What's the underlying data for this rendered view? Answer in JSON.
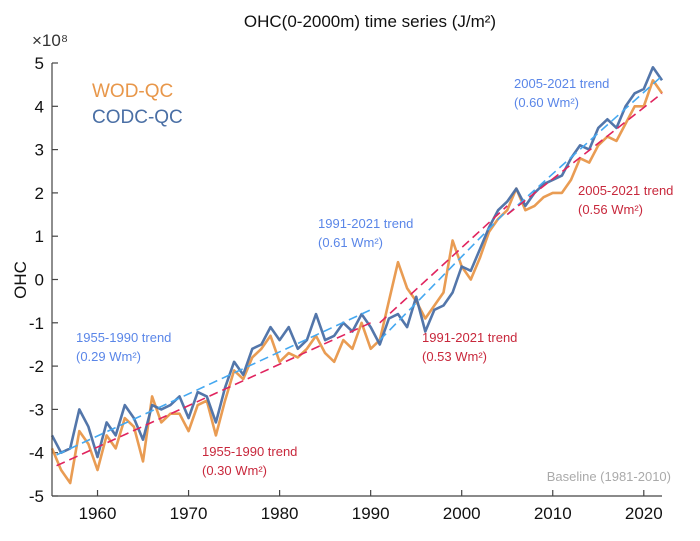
{
  "chart_data": {
    "type": "line",
    "title": "OHC(0-2000m) time series (J/m²)",
    "ylabel": "OHC",
    "y_exponent_label": "×10⁸",
    "xlim": [
      1955,
      2022
    ],
    "ylim": [
      -5,
      5
    ],
    "x_ticks": [
      "1960",
      "1970",
      "1980",
      "1990",
      "2000",
      "2010",
      "2020"
    ],
    "y_ticks": [
      "-5",
      "-4",
      "-3",
      "-2",
      "-1",
      "0",
      "1",
      "2",
      "3",
      "4",
      "5"
    ],
    "grid": false,
    "legend_placement": "top-left",
    "x": [
      1955,
      1956,
      1957,
      1958,
      1959,
      1960,
      1961,
      1962,
      1963,
      1964,
      1965,
      1966,
      1967,
      1968,
      1969,
      1970,
      1971,
      1972,
      1973,
      1974,
      1975,
      1976,
      1977,
      1978,
      1979,
      1980,
      1981,
      1982,
      1983,
      1984,
      1985,
      1986,
      1987,
      1988,
      1989,
      1990,
      1991,
      1992,
      1993,
      1994,
      1995,
      1996,
      1997,
      1998,
      1999,
      2000,
      2001,
      2002,
      2003,
      2004,
      2005,
      2006,
      2007,
      2008,
      2009,
      2010,
      2011,
      2012,
      2013,
      2014,
      2015,
      2016,
      2017,
      2018,
      2019,
      2020,
      2021,
      2022
    ],
    "series": [
      {
        "name": "WOD-QC",
        "color": "#e8974a",
        "values": [
          -3.9,
          -4.4,
          -4.7,
          -3.5,
          -3.8,
          -4.4,
          -3.6,
          -3.9,
          -3.2,
          -3.4,
          -4.2,
          -2.7,
          -3.3,
          -3.1,
          -3.1,
          -3.5,
          -2.9,
          -2.8,
          -3.6,
          -2.8,
          -2.1,
          -2.3,
          -1.8,
          -1.6,
          -1.3,
          -1.9,
          -1.7,
          -1.8,
          -1.6,
          -1.3,
          -1.7,
          -1.9,
          -1.4,
          -1.6,
          -1.0,
          -1.6,
          -1.4,
          -0.5,
          0.4,
          -0.2,
          -0.5,
          -0.9,
          -0.6,
          -0.3,
          0.9,
          0.3,
          0.0,
          0.5,
          1.1,
          1.4,
          1.6,
          2.1,
          1.6,
          1.7,
          1.9,
          2.0,
          2.0,
          2.3,
          2.8,
          2.7,
          3.1,
          3.3,
          3.2,
          3.6,
          4.0,
          4.0,
          4.6,
          4.3
        ]
      },
      {
        "name": "CODC-QC",
        "color": "#4a6fa5",
        "values": [
          -3.6,
          -4.0,
          -3.9,
          -3.0,
          -3.4,
          -4.1,
          -3.3,
          -3.6,
          -2.9,
          -3.2,
          -3.7,
          -2.9,
          -3.0,
          -2.9,
          -2.7,
          -3.2,
          -2.6,
          -2.7,
          -3.3,
          -2.5,
          -1.9,
          -2.2,
          -1.6,
          -1.5,
          -1.1,
          -1.4,
          -1.1,
          -1.6,
          -1.4,
          -0.8,
          -1.4,
          -1.3,
          -1.0,
          -1.2,
          -0.8,
          -1.1,
          -1.5,
          -0.9,
          -0.8,
          -1.1,
          -0.4,
          -1.2,
          -0.7,
          -0.6,
          -0.3,
          0.3,
          0.2,
          0.7,
          1.2,
          1.6,
          1.8,
          2.1,
          1.7,
          2.0,
          2.2,
          2.3,
          2.4,
          2.8,
          3.1,
          3.0,
          3.5,
          3.7,
          3.5,
          4.0,
          4.3,
          4.4,
          4.9,
          4.6
        ]
      }
    ],
    "trends": [
      {
        "series": "CODC-QC",
        "label": "1955-1990 trend",
        "value": "(0.29 Wm²)",
        "color": "#45a8f0",
        "text_color": "#5a86e8",
        "x": [
          1955.5,
          1990
        ],
        "y": [
          -4.05,
          -0.7
        ]
      },
      {
        "series": "WOD-QC",
        "label": "1955-1990 trend",
        "value": "(0.30 Wm²)",
        "color": "#e0245e",
        "text_color": "#c8283c",
        "x": [
          1955.5,
          1990
        ],
        "y": [
          -4.3,
          -1.0
        ]
      },
      {
        "series": "CODC-QC",
        "label": "1991-2021 trend",
        "value": "(0.61 Wm²)",
        "color": "#45a8f0",
        "text_color": "#5a86e8",
        "x": [
          1991,
          2005
        ],
        "y": [
          -1.4,
          1.6
        ]
      },
      {
        "series": "WOD-QC",
        "label": "1991-2021 trend",
        "value": "(0.53 Wm²)",
        "color": "#e0245e",
        "text_color": "#c8283c",
        "x": [
          1991,
          2005
        ],
        "y": [
          -1.0,
          1.7
        ]
      },
      {
        "series": "CODC-QC",
        "label": "2005-2021 trend",
        "value": "(0.60 Wm²)",
        "color": "#45a8f0",
        "text_color": "#5a86e8",
        "x": [
          2005,
          2022
        ],
        "y": [
          1.5,
          4.7
        ]
      },
      {
        "series": "WOD-QC",
        "label": "2005-2021 trend",
        "value": "(0.56 Wm²)",
        "color": "#e0245e",
        "text_color": "#c8283c",
        "x": [
          2005,
          2022
        ],
        "y": [
          1.5,
          4.3
        ]
      }
    ],
    "annotations": {
      "baseline": "Baseline (1981-2010)"
    }
  }
}
